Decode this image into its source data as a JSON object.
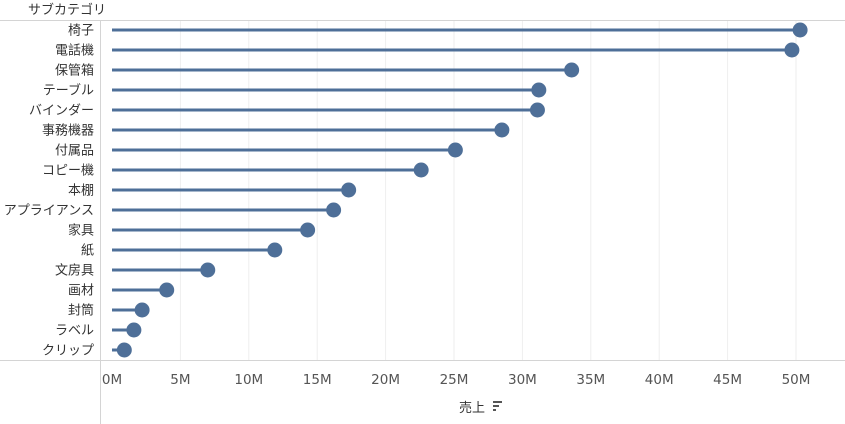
{
  "chart_data": {
    "type": "lollipop",
    "row_header": "サブカテゴリ",
    "xlabel": "売上",
    "xlabel_icon": "sort-descending-icon",
    "categories": [
      "椅子",
      "電話機",
      "保管箱",
      "テーブル",
      "バインダー",
      "事務機器",
      "付属品",
      "コピー機",
      "本棚",
      "アプライアンス",
      "家具",
      "紙",
      "文房具",
      "画材",
      "封筒",
      "ラベル",
      "クリップ"
    ],
    "values": [
      50.3,
      49.7,
      33.6,
      31.2,
      31.1,
      28.5,
      25.1,
      22.6,
      17.3,
      16.2,
      14.3,
      11.9,
      7.0,
      4.0,
      2.2,
      1.6,
      0.9
    ],
    "value_unit": "M",
    "xlim": [
      0,
      53
    ],
    "xticks": [
      0,
      5,
      10,
      15,
      20,
      25,
      30,
      35,
      40,
      45,
      50
    ],
    "xtick_labels": [
      "0M",
      "5M",
      "10M",
      "15M",
      "20M",
      "25M",
      "30M",
      "35M",
      "40M",
      "45M",
      "50M"
    ],
    "grid": true,
    "color": "#4e6f98",
    "grid_color": "#eeeeee",
    "border_color": "#d4d4d4"
  }
}
